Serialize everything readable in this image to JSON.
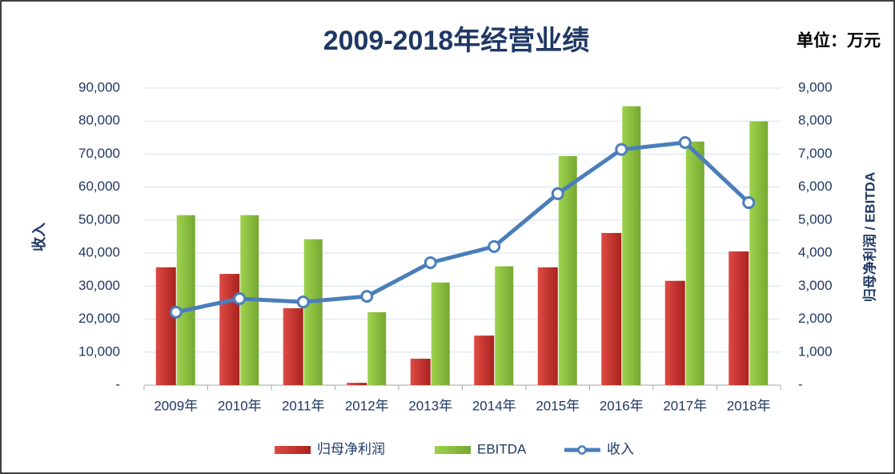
{
  "chart_data": {
    "type": "bar",
    "title": "2009-2018年经营业绩",
    "unit_label": "单位：万元",
    "y_label": "收入",
    "y2_label": "归母净利润 / EBITDA",
    "categories": [
      "2009年",
      "2010年",
      "2011年",
      "2012年",
      "2013年",
      "2014年",
      "2015年",
      "2016年",
      "2017年",
      "2018年"
    ],
    "series": [
      {
        "name": "归母净利润",
        "type": "bar",
        "axis": "y2",
        "color": "#c0302e",
        "values": [
          3570,
          3370,
          2330,
          70,
          800,
          1500,
          3570,
          4610,
          3160,
          4050
        ]
      },
      {
        "name": "EBITDA",
        "type": "bar",
        "axis": "y2",
        "color": "#8dc63f",
        "values": [
          5150,
          5150,
          4420,
          2210,
          3110,
          3600,
          6940,
          8450,
          7380,
          7990
        ]
      },
      {
        "name": "收入",
        "type": "line",
        "axis": "y",
        "color": "#4a7ebb",
        "values": [
          22100,
          26200,
          25200,
          26900,
          37100,
          42000,
          58000,
          71400,
          73500,
          55300
        ]
      }
    ],
    "ylim": [
      0,
      90000
    ],
    "yticks": [
      {
        "value": 0,
        "label": "-"
      },
      {
        "value": 10000,
        "label": "10,000"
      },
      {
        "value": 20000,
        "label": "20,000"
      },
      {
        "value": 30000,
        "label": "30,000"
      },
      {
        "value": 40000,
        "label": "40,000"
      },
      {
        "value": 50000,
        "label": "50,000"
      },
      {
        "value": 60000,
        "label": "60,000"
      },
      {
        "value": 70000,
        "label": "70,000"
      },
      {
        "value": 80000,
        "label": "80,000"
      },
      {
        "value": 90000,
        "label": "90,000"
      }
    ],
    "y2lim": [
      0,
      9000
    ],
    "y2ticks": [
      {
        "value": 0,
        "label": "-"
      },
      {
        "value": 1000,
        "label": "1,000"
      },
      {
        "value": 2000,
        "label": "2,000"
      },
      {
        "value": 3000,
        "label": "3,000"
      },
      {
        "value": 4000,
        "label": "4,000"
      },
      {
        "value": 5000,
        "label": "5,000"
      },
      {
        "value": 6000,
        "label": "6,000"
      },
      {
        "value": 7000,
        "label": "7,000"
      },
      {
        "value": 8000,
        "label": "8,000"
      },
      {
        "value": 9000,
        "label": "9,000"
      }
    ],
    "grid": true,
    "legend": "bottom"
  }
}
